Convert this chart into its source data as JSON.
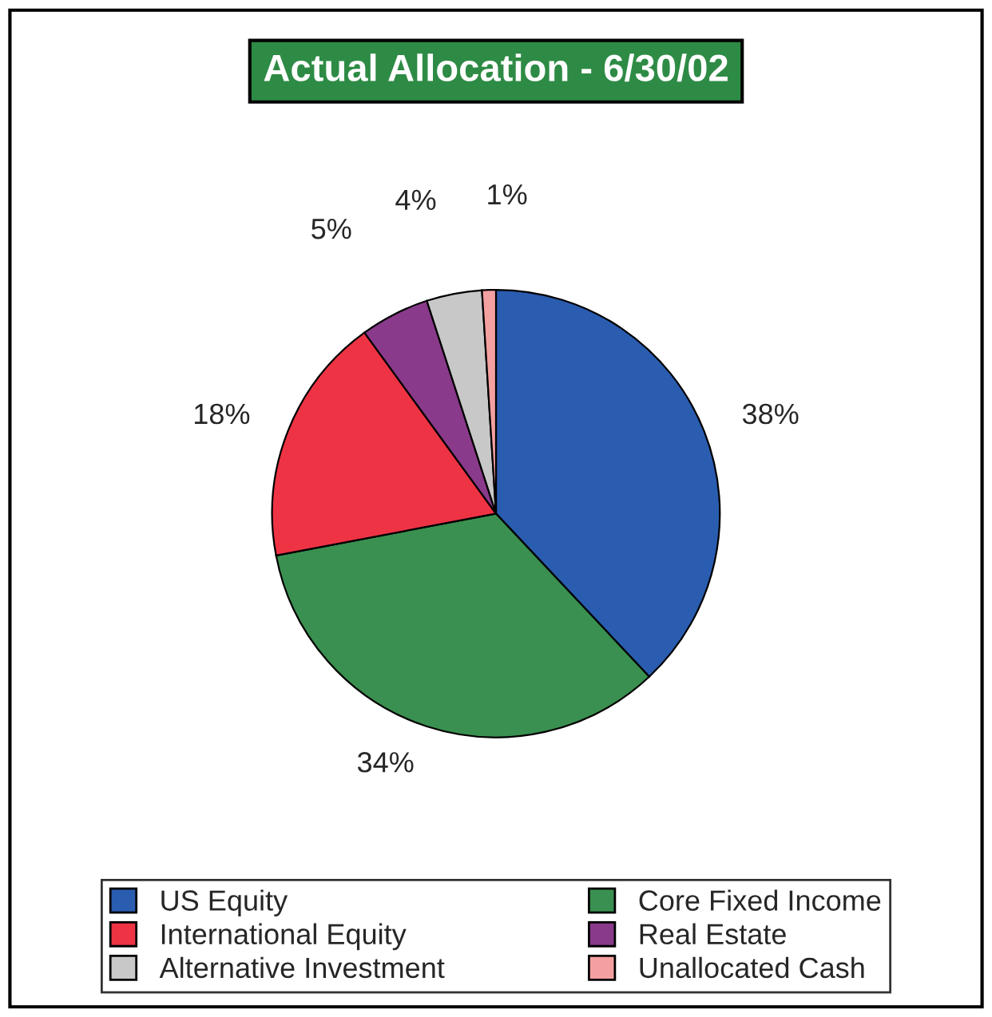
{
  "chart_data": {
    "type": "pie",
    "title": "Actual Allocation - 6/30/02",
    "categories": [
      "US Equity",
      "Core Fixed Income",
      "International Equity",
      "Real Estate",
      "Alternative Investment",
      "Unallocated Cash"
    ],
    "values": [
      38,
      34,
      18,
      5,
      4,
      1
    ],
    "value_labels": [
      "38%",
      "34%",
      "18%",
      "5%",
      "4%",
      "1%"
    ],
    "colors": [
      "#2a5db0",
      "#3a9050",
      "#ee3344",
      "#8a3a8a",
      "#c8c8c8",
      "#f4a0a0"
    ],
    "legend": "bottom"
  }
}
